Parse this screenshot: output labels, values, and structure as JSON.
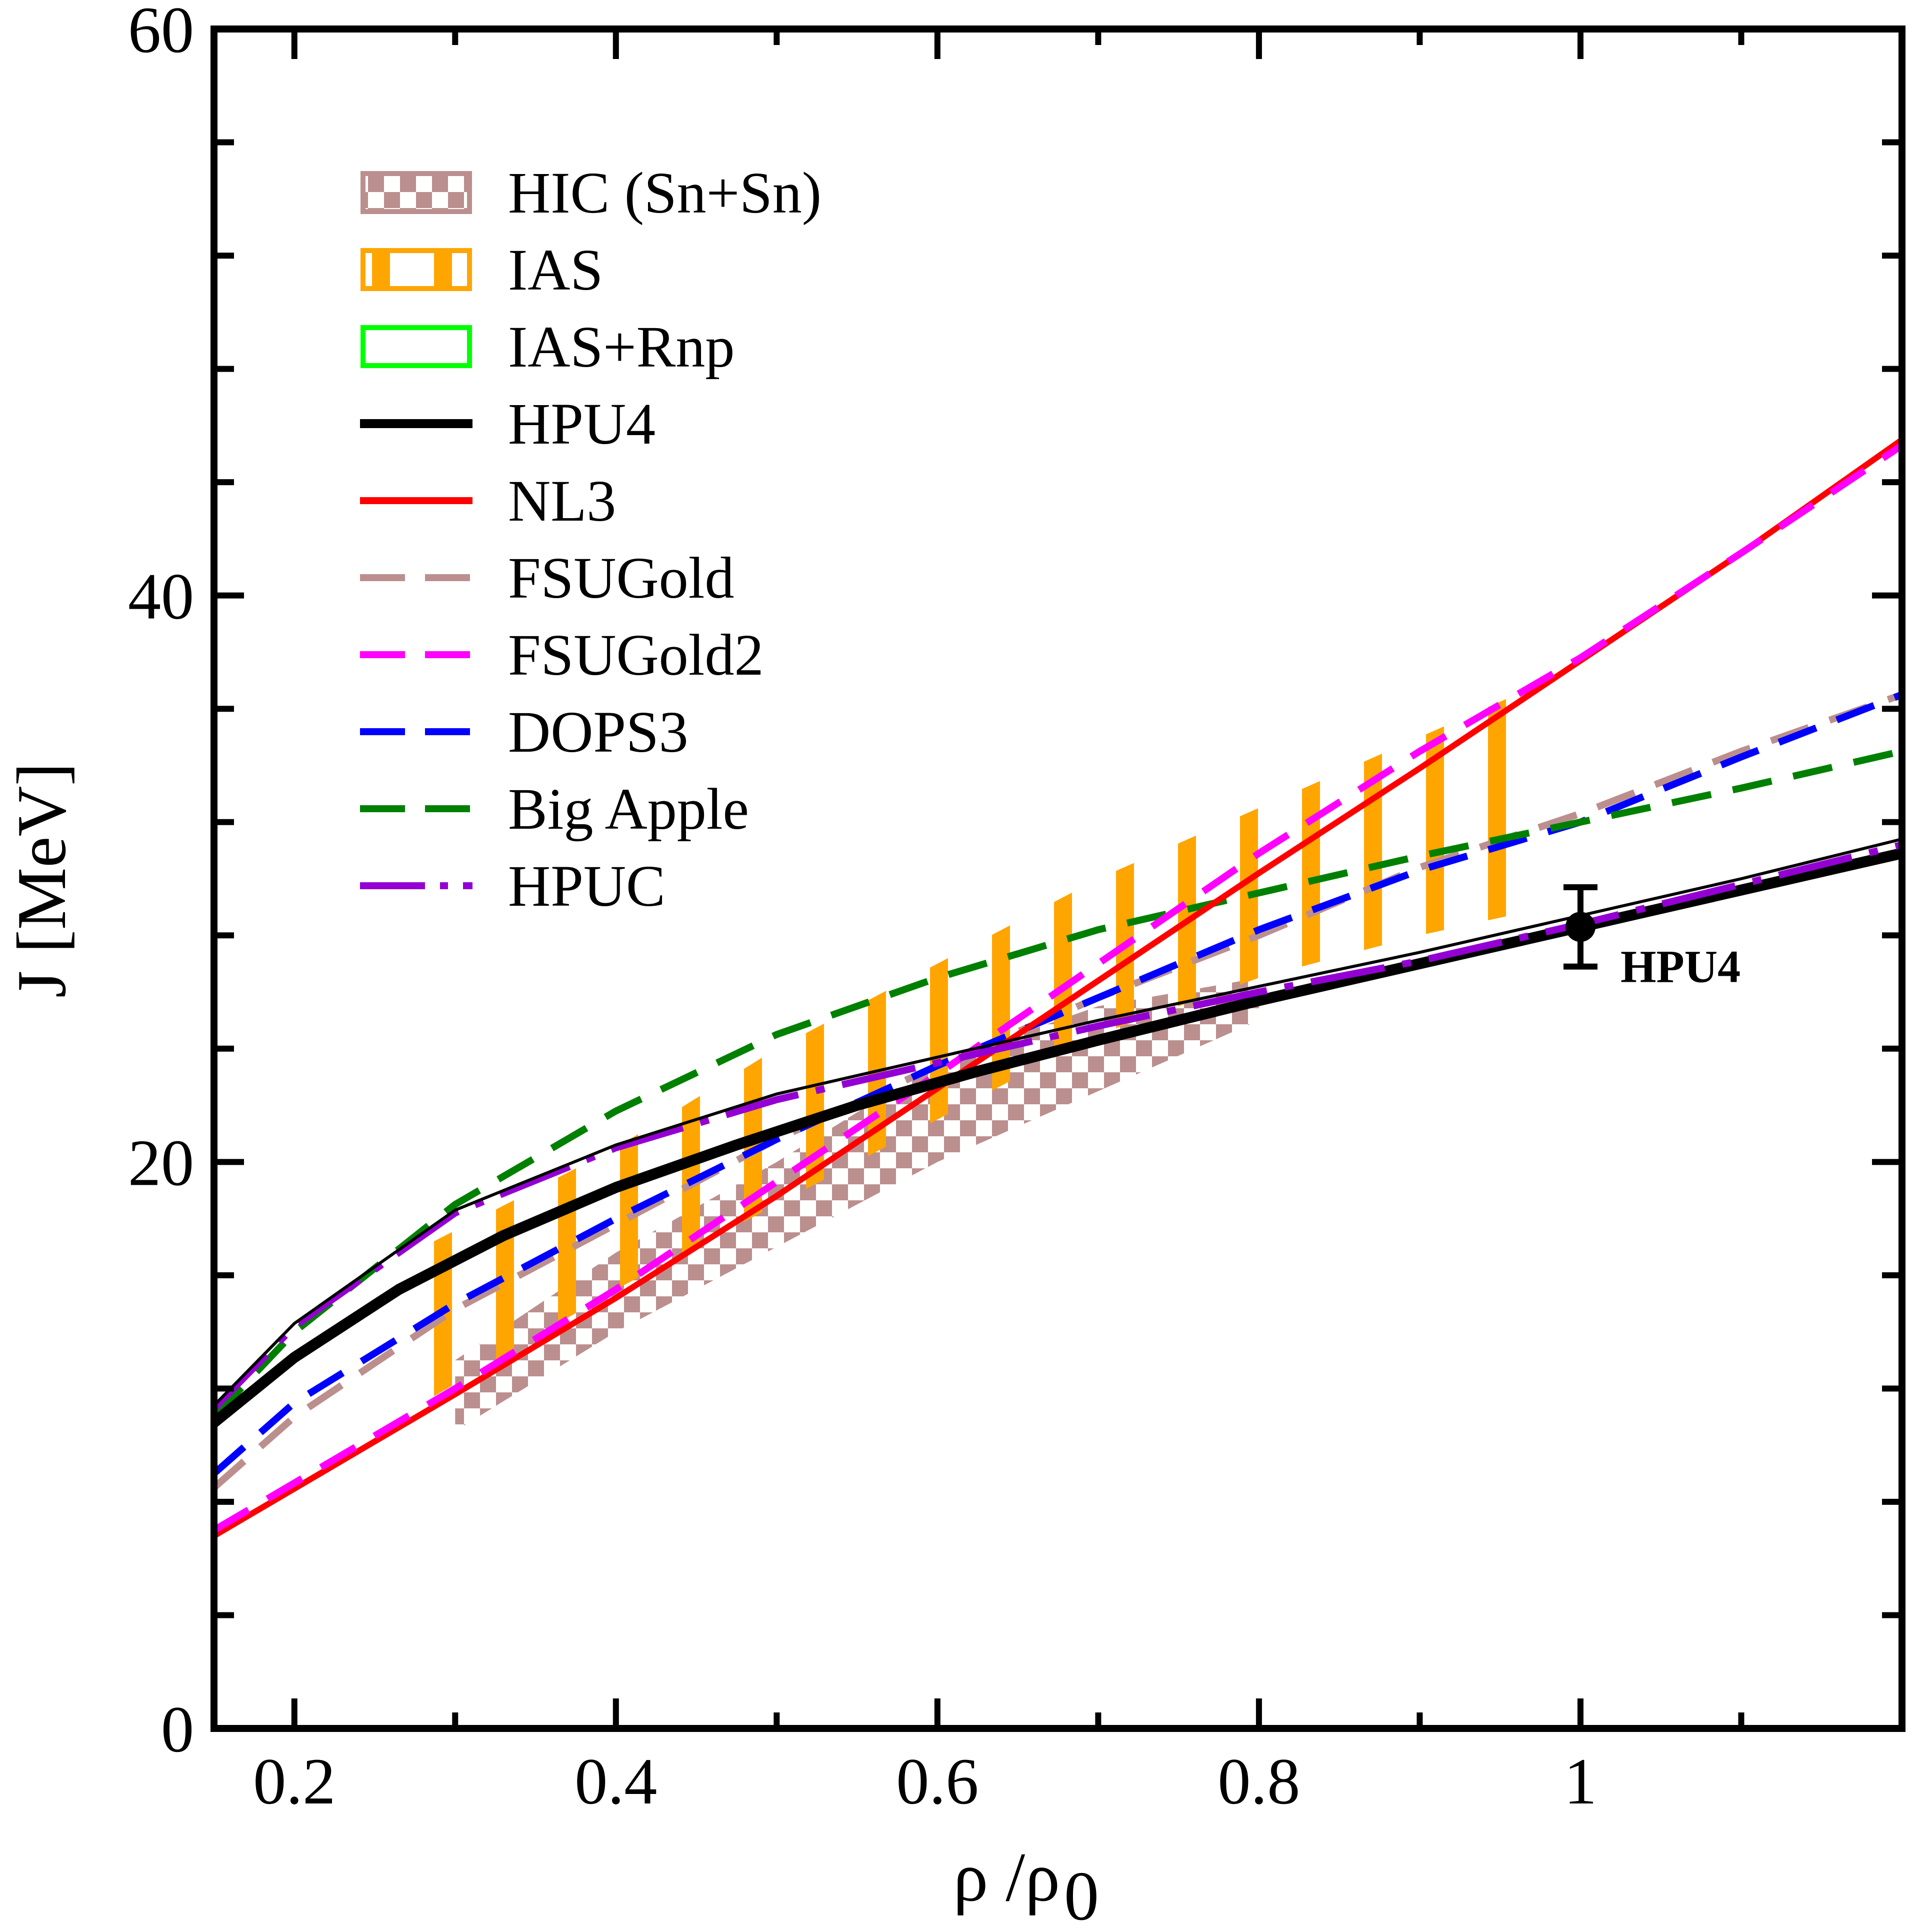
{
  "chart_data": {
    "type": "line",
    "xlabel": "ρ /ρ",
    "xlabel_sub": "0",
    "ylabel": "J  [MeV]",
    "xlim": [
      0.15,
      1.2
    ],
    "ylim": [
      0,
      60
    ],
    "x_ticks": [
      0.2,
      0.4,
      0.6,
      0.8,
      1.0
    ],
    "x_tick_labels": [
      "0.2",
      "0.4",
      "0.6",
      "0.8",
      "1"
    ],
    "y_ticks": [
      0,
      20,
      40,
      60
    ],
    "y_tick_labels": [
      "0",
      "20",
      "40",
      "60"
    ],
    "x_minor_ticks": [
      0.3,
      0.5,
      0.7,
      0.9,
      1.1
    ],
    "y_minor_ticks": [
      4,
      8,
      12,
      16,
      24,
      28,
      32,
      36,
      44,
      48,
      52,
      56
    ],
    "grid": false,
    "legend_position": "top-left",
    "bands": [
      {
        "name": "HIC (Sn+Sn)",
        "color": "#bc8f8f",
        "pattern": "checker",
        "x": [
          0.3,
          0.4,
          0.5,
          0.6,
          0.7,
          0.8
        ],
        "lower": [
          10.5,
          14.0,
          17.0,
          20.0,
          22.5,
          25.0
        ],
        "upper": [
          13.0,
          16.8,
          20.0,
          23.5,
          25.5,
          26.5
        ]
      },
      {
        "name": "IAS",
        "color": "#ffa500",
        "pattern": "vertical-bars",
        "x": [
          0.28,
          0.4,
          0.5,
          0.6,
          0.7,
          0.8,
          0.9,
          0.98
        ],
        "lower": [
          11.5,
          15.5,
          18.5,
          21.5,
          24.5,
          26.5,
          28.0,
          29.0
        ],
        "upper": [
          17.0,
          20.5,
          24.0,
          27.0,
          30.0,
          32.5,
          35.0,
          37.0
        ]
      }
    ],
    "legend_only": [
      {
        "name": "IAS+Rnp",
        "color": "#00ff00",
        "style": "open-box"
      }
    ],
    "series": [
      {
        "name": "HPU4",
        "color": "#000000",
        "style": "solid-thick",
        "x": [
          0.15,
          0.2,
          0.265,
          0.33,
          0.4,
          0.475,
          0.55,
          0.625,
          0.7,
          0.8,
          0.9,
          1.0,
          1.1,
          1.2
        ],
        "y": [
          10.8,
          13.1,
          15.5,
          17.4,
          19.1,
          20.6,
          22.0,
          23.2,
          24.3,
          25.7,
          27.0,
          28.3,
          29.6,
          30.9
        ]
      },
      {
        "name": "NL3",
        "color": "#ff0000",
        "style": "solid",
        "x": [
          0.15,
          0.3,
          0.4,
          0.5,
          0.6,
          0.7,
          0.8,
          0.9,
          1.0,
          1.1,
          1.2
        ],
        "y": [
          6.8,
          11.8,
          15.2,
          18.8,
          22.6,
          26.4,
          30.2,
          33.9,
          37.7,
          41.5,
          45.5
        ]
      },
      {
        "name": "FSUGold",
        "color": "#bc8f8f",
        "style": "dashed",
        "x": [
          0.15,
          0.2,
          0.3,
          0.4,
          0.5,
          0.6,
          0.7,
          0.8,
          0.9,
          1.0,
          1.1,
          1.2
        ],
        "y": [
          8.5,
          11.0,
          14.8,
          17.8,
          20.8,
          23.4,
          25.8,
          28.0,
          30.4,
          32.3,
          34.5,
          36.5
        ]
      },
      {
        "name": "FSUGold2",
        "color": "#ff00ff",
        "style": "dashed",
        "x": [
          0.15,
          0.3,
          0.4,
          0.5,
          0.6,
          0.7,
          0.8,
          0.9,
          1.0,
          1.1,
          1.2
        ],
        "y": [
          7.0,
          12.0,
          15.5,
          19.3,
          23.1,
          27.0,
          30.9,
          34.5,
          37.8,
          41.5,
          45.3
        ]
      },
      {
        "name": "DOPS3",
        "color": "#0000ff",
        "style": "dashed",
        "x": [
          0.15,
          0.2,
          0.3,
          0.4,
          0.5,
          0.6,
          0.7,
          0.8,
          0.9,
          1.0,
          1.1,
          1.2
        ],
        "y": [
          9.0,
          11.5,
          15.0,
          18.0,
          20.8,
          23.4,
          25.8,
          28.2,
          30.3,
          32.0,
          34.3,
          36.5
        ]
      },
      {
        "name": "Big Apple",
        "color": "#008000",
        "style": "dashed",
        "x": [
          0.15,
          0.2,
          0.3,
          0.4,
          0.5,
          0.6,
          0.7,
          0.8,
          0.9,
          1.0,
          1.1,
          1.2
        ],
        "y": [
          11.0,
          14.0,
          18.5,
          21.8,
          24.5,
          26.5,
          28.2,
          29.5,
          30.8,
          32.0,
          33.2,
          34.5
        ]
      },
      {
        "name": "HPUC",
        "color": "#9400d3",
        "style": "long-dash-dot",
        "x": [
          0.15,
          0.2,
          0.3,
          0.4,
          0.5,
          0.6,
          0.7,
          0.8,
          0.9,
          1.0,
          1.1,
          1.2
        ],
        "y": [
          11.3,
          14.2,
          18.2,
          20.5,
          22.2,
          23.5,
          24.8,
          26.0,
          27.1,
          28.4,
          29.8,
          31.2
        ]
      }
    ],
    "thin_black_line": {
      "x": [
        0.15,
        0.2,
        0.3,
        0.4,
        0.5,
        0.6,
        0.7,
        0.8,
        0.9,
        1.0,
        1.1,
        1.2
      ],
      "y": [
        11.4,
        14.3,
        18.3,
        20.6,
        22.4,
        23.7,
        25.0,
        26.2,
        27.4,
        28.7,
        30.0,
        31.4
      ]
    },
    "point": {
      "label": "HPU4",
      "x": 1.0,
      "y": 28.3,
      "yerr_low": 26.9,
      "yerr_high": 29.7
    }
  }
}
